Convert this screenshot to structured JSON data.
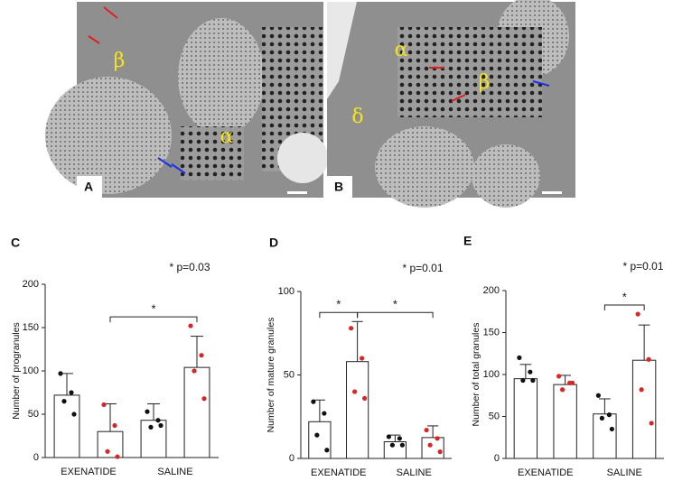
{
  "micrographs": [
    {
      "label": "A",
      "annotations": [
        "β",
        "α"
      ]
    },
    {
      "label": "B",
      "annotations": [
        "α",
        "β",
        "δ"
      ]
    }
  ],
  "chart_data": [
    {
      "type": "bar",
      "panel": "C",
      "annotation": "* p=0.03",
      "ylabel": "Number of progranules",
      "groups": [
        "EXENATIDE",
        "SALINE"
      ],
      "values": [
        72,
        30,
        43,
        104
      ],
      "errors": [
        25,
        32,
        19,
        36
      ],
      "points": [
        [
          97,
          75,
          65,
          50
        ],
        [
          61,
          37,
          7,
          1
        ],
        [
          53,
          43,
          35,
          37
        ],
        [
          152,
          118,
          100,
          68
        ]
      ],
      "point_colors": [
        "#111111",
        "#d62728",
        "#111111",
        "#d62728"
      ],
      "color": "#ffffff",
      "brackets": [
        {
          "from": 1,
          "to": 3,
          "label": "*"
        }
      ],
      "ylim": [
        0,
        200
      ],
      "yticks": [
        0,
        50,
        100,
        150,
        200
      ]
    },
    {
      "type": "bar",
      "panel": "D",
      "annotation": "* p=0.01",
      "ylabel": "Number of mature granules",
      "groups": [
        "EXENATIDE",
        "SALINE"
      ],
      "values": [
        22,
        58,
        10,
        12.5
      ],
      "errors": [
        13,
        24,
        4,
        7
      ],
      "points": [
        [
          34,
          27,
          14,
          5
        ],
        [
          78,
          60,
          40,
          36
        ],
        [
          13,
          12,
          8,
          8
        ],
        [
          17,
          12,
          8,
          4
        ]
      ],
      "point_colors": [
        "#111111",
        "#d62728",
        "#111111",
        "#d62728"
      ],
      "color": "#ffffff",
      "brackets": [
        {
          "from": 0,
          "to": 1,
          "label": "*"
        },
        {
          "from": 1,
          "to": 3,
          "label": "*"
        }
      ],
      "ylim": [
        0,
        100
      ],
      "yticks": [
        0,
        50,
        100
      ]
    },
    {
      "type": "bar",
      "panel": "E",
      "annotation": "* p=0.01",
      "ylabel": "Number of total granules",
      "groups": [
        "EXENATIDE",
        "SALINE"
      ],
      "values": [
        95,
        88,
        53,
        117
      ],
      "errors": [
        17,
        11,
        18,
        42
      ],
      "points": [
        [
          120,
          103,
          93,
          93
        ],
        [
          98,
          90,
          82,
          90
        ],
        [
          75,
          52,
          48,
          35
        ],
        [
          172,
          118,
          82,
          42
        ]
      ],
      "point_colors": [
        "#111111",
        "#d62728",
        "#111111",
        "#d62728"
      ],
      "color": "#ffffff",
      "brackets": [
        {
          "from": 2,
          "to": 3,
          "label": "*"
        }
      ],
      "ylim": [
        0,
        200
      ],
      "yticks": [
        0,
        50,
        100,
        150,
        200
      ]
    }
  ]
}
